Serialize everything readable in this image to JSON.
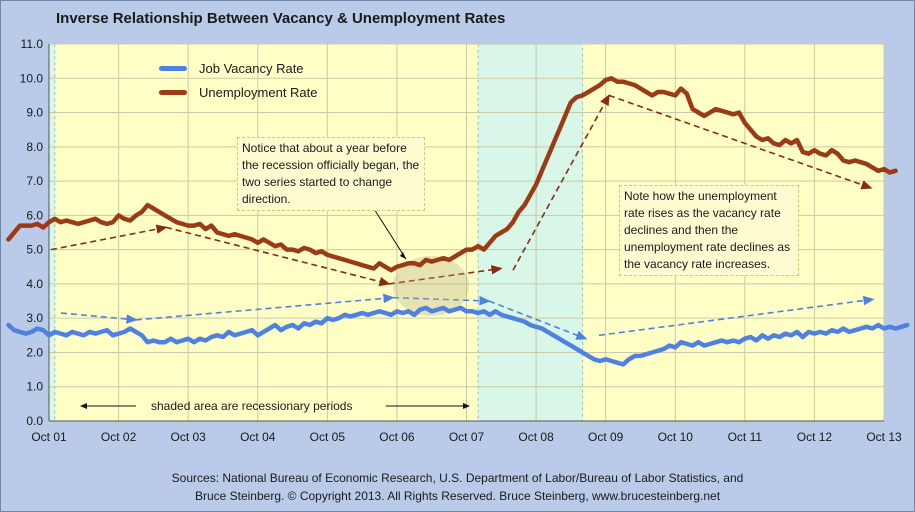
{
  "chart_data": {
    "type": "line",
    "title": "Inverse Relationship Between Vacancy & Unemployment Rates",
    "x_tick_labels": [
      "Oct 01",
      "Oct 02",
      "Oct 03",
      "Oct 04",
      "Oct 05",
      "Oct 06",
      "Oct 07",
      "Oct 08",
      "Oct 09",
      "Oct 10",
      "Oct 11",
      "Oct 12",
      "Oct 13"
    ],
    "ylim": [
      0,
      11
    ],
    "y_tick_labels": [
      "0.0",
      "1.0",
      "2.0",
      "3.0",
      "4.0",
      "5.0",
      "6.0",
      "7.0",
      "8.0",
      "9.0",
      "10.0",
      "11.0"
    ],
    "grid": true,
    "legend_position": "top-left",
    "recessions": [
      {
        "start": "2001-03",
        "end": "2001-11"
      },
      {
        "start": "2007-12",
        "end": "2009-06"
      }
    ],
    "x_start": "2001-03",
    "series": [
      {
        "name": "Job Vacancy Rate",
        "color": "#4f81e0",
        "values": [
          2.8,
          2.65,
          2.6,
          2.55,
          2.6,
          2.7,
          2.65,
          2.5,
          2.6,
          2.55,
          2.5,
          2.6,
          2.55,
          2.5,
          2.6,
          2.55,
          2.6,
          2.65,
          2.5,
          2.55,
          2.6,
          2.7,
          2.6,
          2.5,
          2.3,
          2.35,
          2.3,
          2.3,
          2.4,
          2.3,
          2.35,
          2.4,
          2.3,
          2.4,
          2.35,
          2.45,
          2.5,
          2.45,
          2.6,
          2.5,
          2.55,
          2.6,
          2.65,
          2.5,
          2.6,
          2.7,
          2.8,
          2.65,
          2.75,
          2.8,
          2.7,
          2.85,
          2.8,
          2.9,
          2.85,
          3.0,
          2.95,
          3.0,
          3.1,
          3.05,
          3.1,
          3.15,
          3.1,
          3.15,
          3.2,
          3.15,
          3.1,
          3.2,
          3.15,
          3.2,
          3.1,
          3.25,
          3.3,
          3.2,
          3.25,
          3.3,
          3.2,
          3.25,
          3.3,
          3.2,
          3.2,
          3.15,
          3.2,
          3.1,
          3.2,
          3.1,
          3.05,
          3.0,
          2.95,
          2.9,
          2.8,
          2.75,
          2.7,
          2.6,
          2.5,
          2.4,
          2.3,
          2.2,
          2.1,
          2.0,
          1.9,
          1.8,
          1.75,
          1.8,
          1.75,
          1.7,
          1.65,
          1.8,
          1.9,
          1.9,
          1.95,
          2.0,
          2.05,
          2.1,
          2.2,
          2.15,
          2.3,
          2.25,
          2.2,
          2.3,
          2.2,
          2.25,
          2.3,
          2.35,
          2.3,
          2.35,
          2.3,
          2.4,
          2.45,
          2.35,
          2.5,
          2.4,
          2.5,
          2.45,
          2.55,
          2.5,
          2.6,
          2.45,
          2.6,
          2.55,
          2.6,
          2.55,
          2.65,
          2.6,
          2.7,
          2.6,
          2.65,
          2.7,
          2.75,
          2.7,
          2.8,
          2.7,
          2.75,
          2.7,
          2.75,
          2.8
        ]
      },
      {
        "name": "Unemployment Rate",
        "color": "#9c3a16",
        "values": [
          5.3,
          5.5,
          5.7,
          5.7,
          5.7,
          5.75,
          5.65,
          5.8,
          5.9,
          5.8,
          5.85,
          5.8,
          5.75,
          5.8,
          5.85,
          5.9,
          5.8,
          5.75,
          5.8,
          6.0,
          5.9,
          5.85,
          6.0,
          6.1,
          6.3,
          6.2,
          6.1,
          6.0,
          5.9,
          5.8,
          5.75,
          5.7,
          5.7,
          5.75,
          5.6,
          5.7,
          5.5,
          5.45,
          5.4,
          5.45,
          5.4,
          5.35,
          5.3,
          5.2,
          5.3,
          5.2,
          5.1,
          5.15,
          5.0,
          5.0,
          4.95,
          5.05,
          5.0,
          4.9,
          4.95,
          4.85,
          4.8,
          4.75,
          4.7,
          4.65,
          4.6,
          4.55,
          4.5,
          4.45,
          4.6,
          4.5,
          4.4,
          4.5,
          4.55,
          4.6,
          4.6,
          4.55,
          4.7,
          4.65,
          4.7,
          4.75,
          4.7,
          4.8,
          4.9,
          5.0,
          5.0,
          5.1,
          5.0,
          5.2,
          5.4,
          5.5,
          5.6,
          5.8,
          6.1,
          6.3,
          6.6,
          6.9,
          7.3,
          7.7,
          8.1,
          8.5,
          8.9,
          9.3,
          9.45,
          9.5,
          9.6,
          9.7,
          9.8,
          9.95,
          10.0,
          9.9,
          9.9,
          9.85,
          9.8,
          9.7,
          9.6,
          9.5,
          9.6,
          9.6,
          9.55,
          9.5,
          9.7,
          9.55,
          9.1,
          9.0,
          8.9,
          9.0,
          9.1,
          9.05,
          9.0,
          8.95,
          9.0,
          8.7,
          8.5,
          8.3,
          8.2,
          8.25,
          8.1,
          8.05,
          8.2,
          8.1,
          8.2,
          7.85,
          7.8,
          7.9,
          7.8,
          7.75,
          7.9,
          7.8,
          7.6,
          7.55,
          7.6,
          7.55,
          7.5,
          7.4,
          7.3,
          7.35,
          7.25,
          7.3
        ]
      }
    ],
    "annotations": [
      "Notice that about a year before the recession officially began, the two series started to change direction.",
      "Note how the unemployment rate rises as the vacancy rate declines and then the unemployment rate declines as the vacancy rate increases.",
      "shaded area are recessionary periods"
    ]
  },
  "title": "Inverse Relationship Between Vacancy & Unemployment Rates",
  "legend": [
    {
      "label": "Job Vacancy Rate",
      "color": "#4f81e0"
    },
    {
      "label": "Unemployment Rate",
      "color": "#9c3a16"
    }
  ],
  "note1": "Notice that about a year before the recession officially began, the two series started to change direction.",
  "note2": "Note how the unemployment rate rises as the vacancy rate declines and then the unemployment rate declines as the vacancy rate increases.",
  "shaded_label": "shaded area are recessionary periods",
  "sources_line1": "Sources: National Bureau of Economic Research, U.S. Department of Labor/Bureau of Labor Statistics, and",
  "sources_line2": "Bruce Steinberg.  © Copyright 2013. All Rights Reserved. Bruce Steinberg, www.brucesteinberg.net"
}
